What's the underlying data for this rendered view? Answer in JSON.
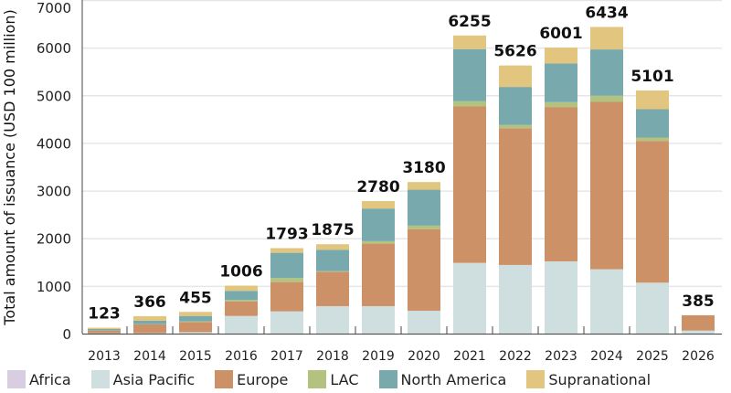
{
  "chart_data": {
    "type": "bar",
    "stacked": true,
    "title": "",
    "xlabel": "",
    "ylabel": "Total amount of issuance (USD 100 million)",
    "ylim": [
      0,
      7000
    ],
    "yticks": [
      "0",
      "1000",
      "2000",
      "3000",
      "4000",
      "5000",
      "6000",
      "7000"
    ],
    "grid": true,
    "legend_position": "bottom",
    "categories": [
      "2013",
      "2014",
      "2015",
      "2016",
      "2017",
      "2018",
      "2019",
      "2020",
      "2021",
      "2022",
      "2023",
      "2024",
      "2025",
      "2026"
    ],
    "totals": [
      "123",
      "366",
      "455",
      "1006",
      "1793",
      "1875",
      "2780",
      "3180",
      "6255",
      "5626",
      "6001",
      "6434",
      "5101",
      "385"
    ],
    "series": [
      {
        "name": "Africa",
        "color": "#d9cde1",
        "values": [
          0,
          0,
          0,
          0,
          0,
          0,
          0,
          0,
          0,
          0,
          0,
          0,
          0,
          0
        ]
      },
      {
        "name": "Asia Pacific",
        "color": "#cfdfdf",
        "values": [
          5,
          10,
          30,
          370,
          466,
          576,
          576,
          480,
          1484,
          1440,
          1516,
          1350,
          1068,
          63
        ]
      },
      {
        "name": "Europe",
        "color": "#cc9166",
        "values": [
          60,
          182,
          214,
          302,
          615,
          724,
          1311,
          1708,
          3282,
          2870,
          3238,
          3512,
          2975,
          322
        ]
      },
      {
        "name": "LAC",
        "color": "#b3c27e",
        "values": [
          3,
          5,
          12,
          32,
          84,
          10,
          52,
          77,
          109,
          66,
          102,
          128,
          71,
          0
        ]
      },
      {
        "name": "North America",
        "color": "#78a9ad",
        "values": [
          30,
          72,
          114,
          192,
          530,
          450,
          685,
          754,
          1095,
          800,
          812,
          973,
          594,
          0
        ]
      },
      {
        "name": "Supranational",
        "color": "#e2c57e",
        "values": [
          25,
          97,
          85,
          110,
          98,
          115,
          156,
          161,
          285,
          450,
          333,
          471,
          393,
          0
        ]
      }
    ]
  }
}
